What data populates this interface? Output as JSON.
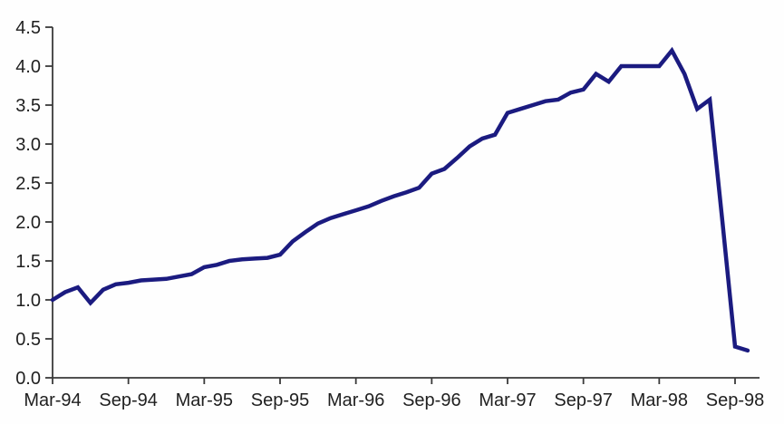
{
  "chart_data": {
    "type": "line",
    "title": "",
    "xlabel": "",
    "ylabel": "",
    "x": [
      "Mar-94",
      "Apr-94",
      "May-94",
      "Jun-94",
      "Jul-94",
      "Aug-94",
      "Sep-94",
      "Oct-94",
      "Nov-94",
      "Dec-94",
      "Jan-95",
      "Feb-95",
      "Mar-95",
      "Apr-95",
      "May-95",
      "Jun-95",
      "Jul-95",
      "Aug-95",
      "Sep-95",
      "Oct-95",
      "Nov-95",
      "Dec-95",
      "Jan-96",
      "Feb-96",
      "Mar-96",
      "Apr-96",
      "May-96",
      "Jun-96",
      "Jul-96",
      "Aug-96",
      "Sep-96",
      "Oct-96",
      "Nov-96",
      "Dec-96",
      "Jan-97",
      "Feb-97",
      "Mar-97",
      "Apr-97",
      "May-97",
      "Jun-97",
      "Jul-97",
      "Aug-97",
      "Sep-97",
      "Oct-97",
      "Nov-97",
      "Dec-97",
      "Jan-98",
      "Feb-98",
      "Mar-98",
      "Apr-98",
      "May-98",
      "Jun-98",
      "Jul-98",
      "Aug-98",
      "Sep-98",
      "Oct-98"
    ],
    "values": [
      1.0,
      1.1,
      1.16,
      0.96,
      1.13,
      1.2,
      1.22,
      1.25,
      1.26,
      1.27,
      1.3,
      1.33,
      1.42,
      1.45,
      1.5,
      1.52,
      1.53,
      1.54,
      1.58,
      1.75,
      1.87,
      1.98,
      2.05,
      2.1,
      2.15,
      2.2,
      2.27,
      2.33,
      2.38,
      2.44,
      2.62,
      2.68,
      2.82,
      2.97,
      3.07,
      3.12,
      3.4,
      3.45,
      3.5,
      3.55,
      3.57,
      3.66,
      3.7,
      3.9,
      3.8,
      4.0,
      4.0,
      4.0,
      4.0,
      4.2,
      3.9,
      3.45,
      3.57,
      2.0,
      0.4,
      0.35
    ],
    "x_tick_labels": [
      "Mar-94",
      "Sep-94",
      "Mar-95",
      "Sep-95",
      "Mar-96",
      "Sep-96",
      "Mar-97",
      "Sep-97",
      "Mar-98",
      "Sep-98"
    ],
    "x_tick_every_n_months": 6,
    "y_tick_labels": [
      "0.0",
      "0.5",
      "1.0",
      "1.5",
      "2.0",
      "2.5",
      "3.0",
      "3.5",
      "4.0",
      "4.5"
    ],
    "ylim": [
      0,
      4.5
    ],
    "grid": "off",
    "legend": "none",
    "colors": {
      "line": "#1b1b80",
      "axis": "#3a3a3a",
      "tick_text": "#1f1f1f",
      "background": "#fefefe"
    }
  }
}
